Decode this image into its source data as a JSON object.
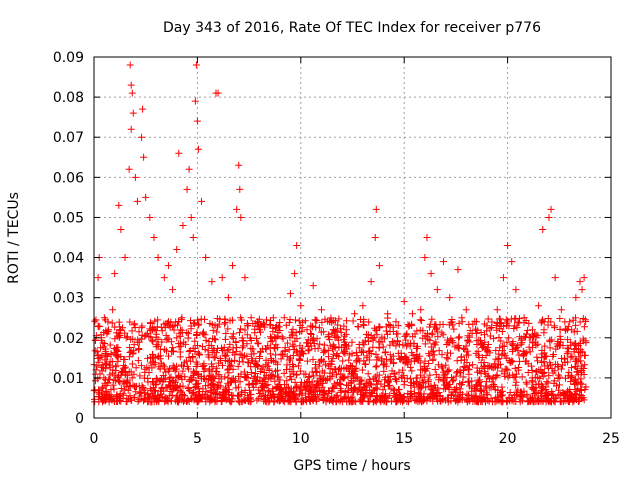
{
  "chart_data": {
    "type": "scatter",
    "title": "Day 343 of 2016, Rate Of TEC Index for receiver p776",
    "xlabel": "GPS time / hours",
    "ylabel": "ROTI / TECUs",
    "xlim": [
      0,
      25
    ],
    "ylim": [
      0,
      0.09
    ],
    "x_ticks": [
      0,
      5,
      10,
      15,
      20,
      25
    ],
    "y_ticks": [
      0,
      0.01,
      0.02,
      0.03,
      0.04,
      0.05,
      0.06,
      0.07,
      0.08,
      0.09
    ],
    "x_tick_labels": [
      "0",
      "5",
      "10",
      "15",
      "20",
      "25"
    ],
    "y_tick_labels": [
      "0",
      "0.01",
      "0.02",
      "0.03",
      "0.04",
      "0.05",
      "0.06",
      "0.07",
      "0.08",
      "0.09"
    ],
    "grid": true,
    "marker": "+",
    "color": "#ff0000",
    "series": [
      {
        "name": "ROTI",
        "points": [
          [
            0.1,
            0.012
          ],
          [
            0.2,
            0.035
          ],
          [
            0.25,
            0.04
          ],
          [
            0.35,
            0.02
          ],
          [
            0.5,
            0.025
          ],
          [
            0.7,
            0.022
          ],
          [
            0.9,
            0.027
          ],
          [
            1.0,
            0.036
          ],
          [
            1.2,
            0.053
          ],
          [
            1.3,
            0.047
          ],
          [
            1.5,
            0.04
          ],
          [
            1.7,
            0.062
          ],
          [
            1.75,
            0.088
          ],
          [
            1.8,
            0.083
          ],
          [
            1.85,
            0.081
          ],
          [
            1.9,
            0.076
          ],
          [
            1.8,
            0.072
          ],
          [
            2.0,
            0.06
          ],
          [
            2.1,
            0.054
          ],
          [
            2.3,
            0.07
          ],
          [
            2.35,
            0.077
          ],
          [
            2.4,
            0.065
          ],
          [
            2.5,
            0.055
          ],
          [
            2.7,
            0.05
          ],
          [
            2.9,
            0.045
          ],
          [
            3.1,
            0.04
          ],
          [
            3.4,
            0.035
          ],
          [
            3.6,
            0.038
          ],
          [
            3.8,
            0.032
          ],
          [
            4.0,
            0.042
          ],
          [
            4.1,
            0.066
          ],
          [
            4.3,
            0.048
          ],
          [
            4.5,
            0.057
          ],
          [
            4.6,
            0.062
          ],
          [
            4.7,
            0.05
          ],
          [
            4.8,
            0.045
          ],
          [
            4.9,
            0.079
          ],
          [
            4.95,
            0.088
          ],
          [
            5.0,
            0.074
          ],
          [
            5.05,
            0.067
          ],
          [
            5.2,
            0.054
          ],
          [
            5.4,
            0.04
          ],
          [
            5.7,
            0.034
          ],
          [
            5.9,
            0.081
          ],
          [
            6.0,
            0.081
          ],
          [
            6.2,
            0.035
          ],
          [
            6.5,
            0.03
          ],
          [
            6.7,
            0.038
          ],
          [
            6.9,
            0.052
          ],
          [
            7.0,
            0.063
          ],
          [
            7.05,
            0.057
          ],
          [
            7.1,
            0.05
          ],
          [
            7.3,
            0.035
          ],
          [
            7.6,
            0.025
          ],
          [
            8.0,
            0.022
          ],
          [
            8.4,
            0.018
          ],
          [
            8.8,
            0.02
          ],
          [
            9.2,
            0.025
          ],
          [
            9.5,
            0.031
          ],
          [
            9.7,
            0.036
          ],
          [
            9.8,
            0.043
          ],
          [
            10.0,
            0.028
          ],
          [
            10.3,
            0.022
          ],
          [
            10.6,
            0.033
          ],
          [
            11.0,
            0.027
          ],
          [
            11.4,
            0.024
          ],
          [
            11.8,
            0.02
          ],
          [
            12.2,
            0.022
          ],
          [
            12.6,
            0.026
          ],
          [
            13.0,
            0.028
          ],
          [
            13.4,
            0.034
          ],
          [
            13.6,
            0.045
          ],
          [
            13.65,
            0.052
          ],
          [
            13.8,
            0.038
          ],
          [
            14.2,
            0.026
          ],
          [
            14.6,
            0.024
          ],
          [
            15.0,
            0.029
          ],
          [
            15.4,
            0.026
          ],
          [
            15.8,
            0.027
          ],
          [
            16.0,
            0.04
          ],
          [
            16.1,
            0.045
          ],
          [
            16.3,
            0.036
          ],
          [
            16.6,
            0.032
          ],
          [
            16.9,
            0.039
          ],
          [
            17.2,
            0.03
          ],
          [
            17.6,
            0.037
          ],
          [
            18.0,
            0.027
          ],
          [
            18.5,
            0.024
          ],
          [
            19.0,
            0.023
          ],
          [
            19.5,
            0.027
          ],
          [
            19.8,
            0.035
          ],
          [
            20.0,
            0.043
          ],
          [
            20.2,
            0.039
          ],
          [
            20.4,
            0.032
          ],
          [
            20.8,
            0.025
          ],
          [
            21.2,
            0.022
          ],
          [
            21.5,
            0.028
          ],
          [
            21.7,
            0.047
          ],
          [
            22.0,
            0.05
          ],
          [
            22.1,
            0.052
          ],
          [
            22.3,
            0.035
          ],
          [
            22.6,
            0.027
          ],
          [
            23.0,
            0.024
          ],
          [
            23.3,
            0.03
          ],
          [
            23.5,
            0.034
          ],
          [
            23.6,
            0.032
          ],
          [
            23.7,
            0.035
          ]
        ],
        "noise_band": {
          "x_range": [
            0,
            23.8
          ],
          "y_low": 0.004,
          "y_high": 0.025,
          "count": 2600,
          "seed": 343
        }
      }
    ]
  }
}
